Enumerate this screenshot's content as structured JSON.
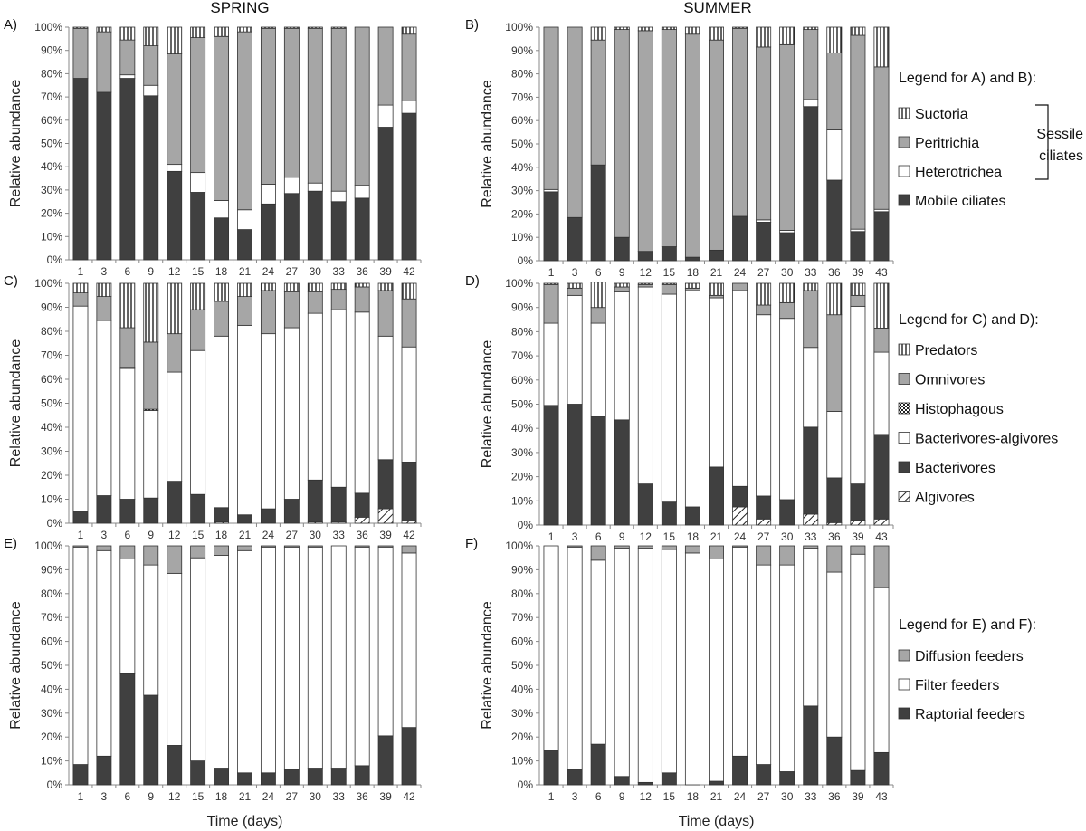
{
  "headers": {
    "spring": "SPRING",
    "summer": "SUMMER"
  },
  "axis": {
    "ylabel": "Relative abundance",
    "xlabel": "Time (days)",
    "yticks": [
      "0%",
      "10%",
      "20%",
      "30%",
      "40%",
      "50%",
      "60%",
      "70%",
      "80%",
      "90%",
      "100%"
    ]
  },
  "colors": {
    "mobile": "#404040",
    "hetero": "#ffffff",
    "peri": "#a6a6a6",
    "suct": "#ffffff",
    "algi": "#ffffff",
    "bact": "#404040",
    "bacalg": "#ffffff",
    "histo": "#ffffff",
    "omni": "#a6a6a6",
    "pred": "#ffffff",
    "rap": "#404040",
    "filt": "#ffffff",
    "diff": "#a6a6a6"
  },
  "legends": [
    {
      "title": "Legend for A) and B):",
      "items": [
        {
          "key": "suct",
          "label": "Suctoria"
        },
        {
          "key": "peri",
          "label": "Peritrichia"
        },
        {
          "key": "hetero",
          "label": "Heterotrichea"
        },
        {
          "key": "mobile",
          "label": "Mobile ciliates"
        }
      ],
      "bracket_label": [
        "Sessile",
        "ciliates"
      ]
    },
    {
      "title": "Legend for C) and D):",
      "items": [
        {
          "key": "pred",
          "label": "Predators"
        },
        {
          "key": "omni",
          "label": "Omnivores"
        },
        {
          "key": "histo",
          "label": "Histophagous"
        },
        {
          "key": "bacalg",
          "label": "Bacterivores-algivores"
        },
        {
          "key": "bact",
          "label": "Bacterivores"
        },
        {
          "key": "algi",
          "label": "Algivores"
        }
      ]
    },
    {
      "title": "Legend for E) and F):",
      "items": [
        {
          "key": "diff",
          "label": "Diffusion feeders"
        },
        {
          "key": "filt",
          "label": "Filter feeders"
        },
        {
          "key": "rap",
          "label": "Raptorial feeders"
        }
      ]
    }
  ],
  "chart_data": [
    {
      "panel": "A)",
      "type": "bar",
      "stacked": true,
      "x": [
        "1",
        "3",
        "6",
        "9",
        "12",
        "15",
        "18",
        "21",
        "24",
        "27",
        "30",
        "33",
        "36",
        "39",
        "42"
      ],
      "ylim": [
        0,
        100
      ],
      "series": [
        {
          "name": "Mobile ciliates",
          "key": "mobile",
          "values": [
            78,
            72,
            78,
            70.5,
            38,
            29,
            18,
            13,
            24,
            28.5,
            29.5,
            25,
            26.5,
            57,
            63
          ]
        },
        {
          "name": "Heterotrichea",
          "key": "hetero",
          "values": [
            0,
            0,
            1.5,
            4.5,
            3,
            8.5,
            7.5,
            8.5,
            8.5,
            7,
            3.5,
            4.5,
            5.5,
            9.5,
            5.5
          ]
        },
        {
          "name": "Peritrichia",
          "key": "peri",
          "values": [
            21.5,
            26,
            15,
            17,
            47.5,
            58,
            70.5,
            76.5,
            67,
            64,
            66.5,
            70,
            68,
            33.5,
            28.5
          ]
        },
        {
          "name": "Suctoria",
          "key": "suct",
          "values": [
            0.5,
            2,
            5.5,
            8,
            11.5,
            4.5,
            4,
            2,
            0.5,
            0.5,
            0.5,
            0.5,
            0,
            0,
            3
          ]
        }
      ]
    },
    {
      "panel": "B)",
      "type": "bar",
      "stacked": true,
      "x": [
        "1",
        "3",
        "6",
        "9",
        "12",
        "15",
        "18",
        "21",
        "24",
        "27",
        "30",
        "33",
        "36",
        "39",
        "43"
      ],
      "ylim": [
        0,
        100
      ],
      "series": [
        {
          "name": "Mobile ciliates",
          "key": "mobile",
          "values": [
            29.5,
            18.5,
            41,
            10,
            4,
            6,
            1.5,
            4.5,
            19,
            16.5,
            12,
            66,
            34.5,
            12.5,
            21
          ]
        },
        {
          "name": "Heterotrichea",
          "key": "hetero",
          "values": [
            1,
            0,
            0,
            0,
            0,
            0,
            0,
            0,
            0,
            1,
            1,
            3,
            21.5,
            1,
            1
          ]
        },
        {
          "name": "Peritrichia",
          "key": "peri",
          "values": [
            69.5,
            81.5,
            53.5,
            89,
            94.5,
            93,
            95.5,
            90,
            80.5,
            74,
            79.5,
            30,
            33,
            83,
            61
          ]
        },
        {
          "name": "Suctoria",
          "key": "suct",
          "values": [
            0,
            0,
            5.5,
            1,
            1.5,
            1,
            3,
            5.5,
            0.5,
            8.5,
            7.5,
            1,
            11,
            3.5,
            17
          ]
        }
      ]
    },
    {
      "panel": "C)",
      "type": "bar",
      "stacked": true,
      "x": [
        "1",
        "3",
        "6",
        "9",
        "12",
        "15",
        "18",
        "21",
        "24",
        "27",
        "30",
        "33",
        "36",
        "39",
        "42"
      ],
      "ylim": [
        0,
        100
      ],
      "series": [
        {
          "name": "Algivores",
          "key": "algi",
          "values": [
            0,
            0,
            0,
            0,
            0,
            0,
            0.5,
            0,
            0,
            0,
            0.5,
            0.5,
            2.5,
            6,
            1
          ]
        },
        {
          "name": "Bacterivores",
          "key": "bact",
          "values": [
            5,
            11.5,
            10,
            10.5,
            17.5,
            12,
            6,
            3.5,
            6,
            10,
            17.5,
            14.5,
            10,
            20.5,
            24.5
          ]
        },
        {
          "name": "Bacterivores-algivores",
          "key": "bacalg",
          "values": [
            85.5,
            73,
            54.5,
            36.5,
            45.5,
            60,
            71.5,
            79,
            73,
            71.5,
            69.5,
            74,
            75.5,
            51.5,
            48
          ]
        },
        {
          "name": "Histophagous",
          "key": "histo",
          "values": [
            0,
            0,
            0.5,
            0.5,
            0,
            0,
            0,
            0,
            0,
            0,
            0,
            0,
            0,
            0,
            0
          ]
        },
        {
          "name": "Omnivores",
          "key": "omni",
          "values": [
            5.5,
            10,
            16.5,
            28,
            16,
            17,
            14.5,
            12,
            18,
            15,
            9,
            8.5,
            10.5,
            19,
            20
          ]
        },
        {
          "name": "Predators",
          "key": "pred",
          "values": [
            4,
            5.5,
            18.5,
            24.5,
            21,
            11,
            7.5,
            5.5,
            3,
            3.5,
            3.5,
            2.5,
            1.5,
            3,
            6.5
          ]
        }
      ]
    },
    {
      "panel": "D)",
      "type": "bar",
      "stacked": true,
      "x": [
        "1",
        "3",
        "6",
        "9",
        "12",
        "15",
        "18",
        "21",
        "24",
        "27",
        "30",
        "33",
        "36",
        "39",
        "43"
      ],
      "ylim": [
        0,
        100
      ],
      "series": [
        {
          "name": "Algivores",
          "key": "algi",
          "values": [
            0,
            0,
            0,
            0,
            0,
            0,
            0,
            0,
            7.5,
            2.5,
            0,
            4.5,
            1,
            2,
            2.5
          ]
        },
        {
          "name": "Bacterivores",
          "key": "bact",
          "values": [
            49.5,
            50,
            45,
            43.5,
            17,
            9.5,
            7.5,
            24,
            8.5,
            9.5,
            10.5,
            36,
            18.5,
            15,
            35
          ]
        },
        {
          "name": "Bacterivores-algivores",
          "key": "bacalg",
          "values": [
            34,
            45,
            38.5,
            53,
            81.5,
            86,
            89.5,
            70,
            81,
            75,
            75,
            33,
            27.5,
            73.5,
            34
          ]
        },
        {
          "name": "Histophagous",
          "key": "histo",
          "values": [
            0,
            0,
            0,
            0,
            0,
            0,
            0,
            0,
            0,
            0,
            0,
            0,
            0,
            0,
            0
          ]
        },
        {
          "name": "Omnivores",
          "key": "omni",
          "values": [
            16,
            3,
            6.5,
            2,
            1,
            4,
            1,
            1,
            3,
            4,
            6.5,
            23.5,
            40,
            4.5,
            10
          ]
        },
        {
          "name": "Predators",
          "key": "pred",
          "values": [
            0.5,
            2,
            10.5,
            1.5,
            0.5,
            0.5,
            2,
            5,
            0,
            9,
            8,
            3,
            13,
            5,
            18.5
          ]
        }
      ]
    },
    {
      "panel": "E)",
      "type": "bar",
      "stacked": true,
      "x": [
        "1",
        "3",
        "6",
        "9",
        "12",
        "15",
        "18",
        "21",
        "24",
        "27",
        "30",
        "33",
        "36",
        "39",
        "42"
      ],
      "ylim": [
        0,
        100
      ],
      "series": [
        {
          "name": "Raptorial feeders",
          "key": "rap",
          "values": [
            8.5,
            12,
            46.5,
            37.5,
            16.5,
            10,
            7,
            5,
            5,
            6.5,
            7,
            7,
            8,
            20.5,
            24
          ]
        },
        {
          "name": "Filter feeders",
          "key": "filt",
          "values": [
            91,
            86,
            48,
            54.5,
            72,
            85,
            89,
            93,
            94.5,
            93,
            92.5,
            93,
            91.5,
            79,
            73
          ]
        },
        {
          "name": "Diffusion feeders",
          "key": "diff",
          "values": [
            0.5,
            2,
            5.5,
            8,
            11.5,
            5,
            4,
            2,
            0.5,
            0.5,
            0.5,
            0,
            0.5,
            0.5,
            3
          ]
        }
      ]
    },
    {
      "panel": "F)",
      "type": "bar",
      "stacked": true,
      "x": [
        "1",
        "3",
        "6",
        "9",
        "12",
        "15",
        "18",
        "21",
        "24",
        "27",
        "30",
        "33",
        "36",
        "39",
        "43"
      ],
      "ylim": [
        0,
        100
      ],
      "series": [
        {
          "name": "Raptorial feeders",
          "key": "rap",
          "values": [
            14.5,
            6.5,
            17,
            3.5,
            1,
            5,
            0,
            1.5,
            12,
            8.5,
            5.5,
            33,
            20,
            6,
            13.5
          ]
        },
        {
          "name": "Filter feeders",
          "key": "filt",
          "values": [
            85.5,
            93,
            77,
            95.5,
            98,
            93.5,
            97,
            93,
            87.5,
            83.5,
            86.5,
            66,
            69,
            90.5,
            69
          ]
        },
        {
          "name": "Diffusion feeders",
          "key": "diff",
          "values": [
            0,
            0.5,
            6,
            1,
            1,
            1.5,
            3,
            5.5,
            0.5,
            8,
            8,
            1,
            11,
            3.5,
            17.5
          ]
        }
      ]
    }
  ]
}
